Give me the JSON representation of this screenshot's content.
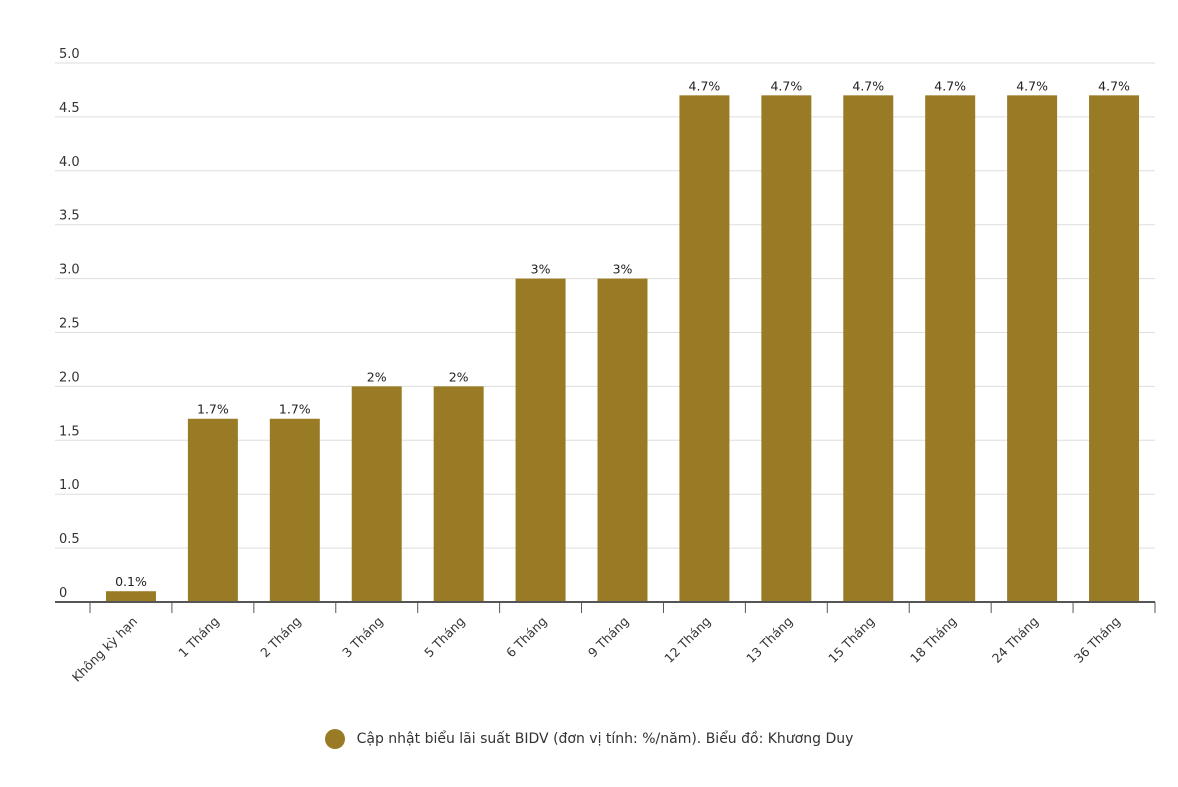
{
  "chart_data": {
    "type": "bar",
    "categories": [
      "Không kỳ hạn",
      "1 Tháng",
      "2 Tháng",
      "3 Tháng",
      "5 Tháng",
      "6 Tháng",
      "9 Tháng",
      "12 Tháng",
      "13 Tháng",
      "15 Tháng",
      "18 Tháng",
      "24 Tháng",
      "36 Tháng"
    ],
    "series": [
      {
        "name": "Cập nhật biểu lãi suất BIDV (đơn vị tính: %/năm). Biểu đồ: Khương Duy",
        "values": [
          0.1,
          1.7,
          1.7,
          2,
          2,
          3,
          3,
          4.7,
          4.7,
          4.7,
          4.7,
          4.7,
          4.7
        ],
        "data_labels": [
          "0.1%",
          "1.7%",
          "1.7%",
          "2%",
          "2%",
          "3%",
          "3%",
          "4.7%",
          "4.7%",
          "4.7%",
          "4.7%",
          "4.7%",
          "4.7%"
        ]
      }
    ],
    "yticks": [
      "0",
      "0.5",
      "1.0",
      "1.5",
      "2.0",
      "2.5",
      "3.0",
      "3.5",
      "4.0",
      "4.5",
      "5.0"
    ],
    "ylim": [
      0,
      5
    ],
    "grid": true,
    "legend_position": "bottom",
    "bar_color": "#9a7b25"
  },
  "legend": {
    "label": "Cập nhật biểu lãi suất BIDV (đơn vị tính: %/năm). Biểu đồ: Khương Duy",
    "color": "#9a7b25"
  }
}
